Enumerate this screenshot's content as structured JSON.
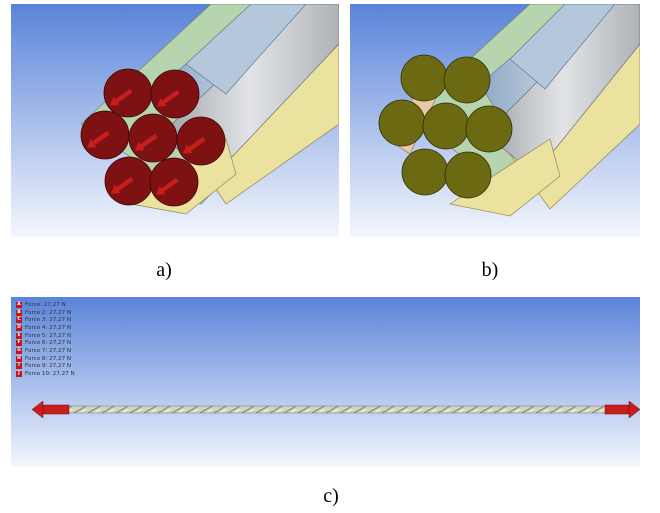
{
  "captions": {
    "a": "a)",
    "b": "b)",
    "c": "c)"
  },
  "colors": {
    "face_force": "#7e1111",
    "face_support": "#6b6a12",
    "arrow": "#c81e1e",
    "viewport_top": "#5a84da",
    "viewport_bottom": "#f4f7fc",
    "wire_blue": "#a7bdd3",
    "wire_green": "#b6d4ad",
    "wire_yellow": "#ece2a0",
    "wire_grey": "#cfd2d6"
  },
  "legend": [
    {
      "key": "A",
      "label": "Force: 27,27 N"
    },
    {
      "key": "B",
      "label": "Force 2: 27,27 N"
    },
    {
      "key": "C",
      "label": "Force 3: 27,27 N"
    },
    {
      "key": "D",
      "label": "Force 4: 27,27 N"
    },
    {
      "key": "E",
      "label": "Force 5: 27,27 N"
    },
    {
      "key": "F",
      "label": "Force 6: 27,27 N"
    },
    {
      "key": "G",
      "label": "Force 7: 27,27 N"
    },
    {
      "key": "H",
      "label": "Force 8: 27,27 N"
    },
    {
      "key": "I",
      "label": "Force 9: 27,27 N"
    },
    {
      "key": "J",
      "label": "Force 10: 27,27 N"
    }
  ]
}
